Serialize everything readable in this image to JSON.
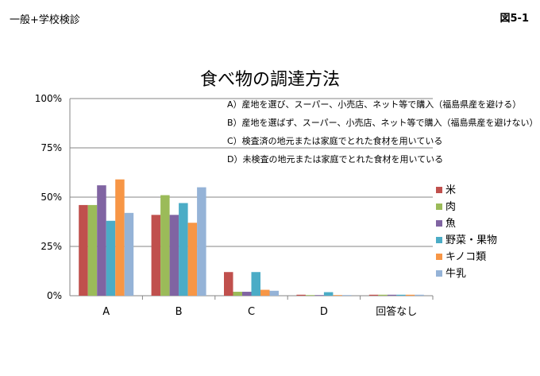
{
  "header": {
    "left_label": "一般+学校検診",
    "right_label": "図5-1"
  },
  "chart_data": {
    "type": "bar",
    "title": "食べ物の調達方法",
    "categories": [
      "A",
      "B",
      "C",
      "D",
      "回答なし"
    ],
    "yticks": [
      "0%",
      "25%",
      "50%",
      "75%",
      "100%"
    ],
    "ylim": [
      0,
      100
    ],
    "grid": true,
    "legend_position": "right",
    "series": [
      {
        "name": "米",
        "color": "#c0504d",
        "values": [
          46,
          41,
          12,
          0.5,
          0.5
        ]
      },
      {
        "name": "肉",
        "color": "#9bbb59",
        "values": [
          46,
          51,
          2,
          0.2,
          0.5
        ]
      },
      {
        "name": "魚",
        "color": "#8064a2",
        "values": [
          56,
          41,
          2,
          0.3,
          0.5
        ]
      },
      {
        "name": "野菜・果物",
        "color": "#4bacc6",
        "values": [
          38,
          47,
          12,
          1.8,
          0.5
        ]
      },
      {
        "name": "キノコ類",
        "color": "#f79646",
        "values": [
          59,
          37,
          3,
          0.2,
          0.5
        ]
      },
      {
        "name": "牛乳",
        "color": "#95b3d7",
        "values": [
          42,
          55,
          2.5,
          0.2,
          0.5
        ]
      }
    ],
    "annotations": [
      "A）産地を選び、スーパー、小売店、ネット等で購入（福島県産を避ける）",
      "B）産地を選ばず、スーパー、小売店、ネット等で購入（福島県産を避けない）",
      "C）検査済の地元または家庭でとれた食材を用いている",
      "D）未検査の地元または家庭でとれた食材を用いている"
    ]
  }
}
